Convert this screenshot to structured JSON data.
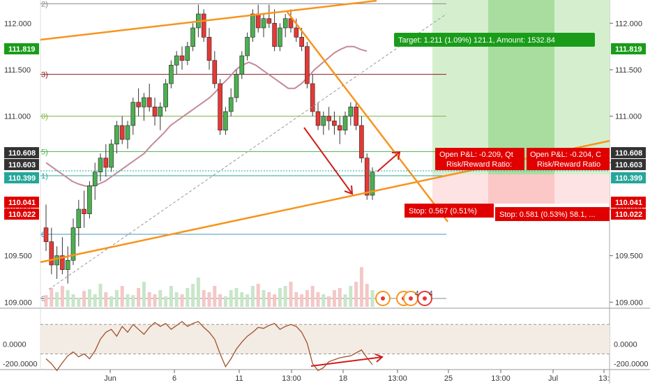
{
  "chart_data": [
    {
      "type": "candlestick",
      "title": "",
      "ylim": [
        108.95,
        112.25
      ],
      "right_axis_ticks": [
        "112.000",
        "111.500",
        "111.000",
        "110.500",
        "110.000",
        "109.500",
        "109.000"
      ],
      "left_axis_ticks": [
        "112.000",
        "111.500",
        "111.000",
        "110.500",
        "110.000",
        "109.500",
        "109.000"
      ],
      "right_axis_ticks_values": [
        112.0,
        111.5,
        111.0,
        110.5,
        110.0,
        109.5,
        109.0
      ],
      "x_ticks": [
        "Jun",
        "6",
        "11",
        "13:00",
        "18",
        "13:00",
        "25",
        "13:00",
        "Jul",
        "13:"
      ],
      "price_badges": [
        {
          "label": "111.819",
          "value": 111.819,
          "color": "#1a9c1a"
        },
        {
          "label": "110.608",
          "value": 110.608,
          "color": "#333333"
        },
        {
          "label": "110.603",
          "value": 110.603,
          "color": "#333333"
        },
        {
          "label": "110.399",
          "value": 110.399,
          "color": "#26a69a"
        },
        {
          "label": "110.041",
          "value": 110.041,
          "color": "#e00000"
        },
        {
          "label": "110.022",
          "value": 110.022,
          "color": "#e00000"
        }
      ],
      "fib_levels": [
        {
          "label": "2)",
          "value": 112.21,
          "color": "#888888"
        },
        {
          "label": "3)",
          "value": 111.45,
          "color": "#8b1a1a"
        },
        {
          "label": "0)",
          "value": 111.0,
          "color": "#7cb342"
        },
        {
          "label": "5)",
          "value": 110.62,
          "color": "#4caf50"
        },
        {
          "label": "1)",
          "value": 110.36,
          "color": "#26a69a"
        },
        {
          "label": "8)",
          "value": 109.73,
          "color": "#4a90b8"
        },
        {
          "label": "9)",
          "value": 109.04,
          "color": "#888888"
        }
      ],
      "candles": [
        [
          109.8,
          110.05,
          109.55,
          109.65
        ],
        [
          109.65,
          109.8,
          109.3,
          109.4
        ],
        [
          109.4,
          109.6,
          109.25,
          109.5
        ],
        [
          109.5,
          109.7,
          109.3,
          109.35
        ],
        [
          109.35,
          109.6,
          109.2,
          109.45
        ],
        [
          109.45,
          109.9,
          109.4,
          109.8
        ],
        [
          109.8,
          110.1,
          109.6,
          110.0
        ],
        [
          110.0,
          110.2,
          109.8,
          109.95
        ],
        [
          109.95,
          110.3,
          109.9,
          110.25
        ],
        [
          110.25,
          110.5,
          110.1,
          110.4
        ],
        [
          110.4,
          110.6,
          110.3,
          110.55
        ],
        [
          110.55,
          110.7,
          110.35,
          110.45
        ],
        [
          110.45,
          110.75,
          110.4,
          110.7
        ],
        [
          110.7,
          110.95,
          110.6,
          110.9
        ],
        [
          110.9,
          111.0,
          110.7,
          110.75
        ],
        [
          110.75,
          110.95,
          110.65,
          110.9
        ],
        [
          110.9,
          111.2,
          110.8,
          111.15
        ],
        [
          111.15,
          111.3,
          111.0,
          111.1
        ],
        [
          111.1,
          111.25,
          110.95,
          111.2
        ],
        [
          111.2,
          111.35,
          111.05,
          111.1
        ],
        [
          111.1,
          111.2,
          110.9,
          111.0
        ],
        [
          111.0,
          111.15,
          110.85,
          111.1
        ],
        [
          111.1,
          111.4,
          111.05,
          111.35
        ],
        [
          111.35,
          111.6,
          111.3,
          111.55
        ],
        [
          111.55,
          111.7,
          111.45,
          111.65
        ],
        [
          111.65,
          111.75,
          111.5,
          111.6
        ],
        [
          111.6,
          111.8,
          111.55,
          111.75
        ],
        [
          111.75,
          112.0,
          111.7,
          111.95
        ],
        [
          111.95,
          112.2,
          111.85,
          112.1
        ],
        [
          112.1,
          112.15,
          111.8,
          111.85
        ],
        [
          111.85,
          111.95,
          111.5,
          111.6
        ],
        [
          111.6,
          111.7,
          111.3,
          111.35
        ],
        [
          111.35,
          111.4,
          110.8,
          110.85
        ],
        [
          110.85,
          111.1,
          110.8,
          111.05
        ],
        [
          111.05,
          111.3,
          111.0,
          111.2
        ],
        [
          111.2,
          111.5,
          111.15,
          111.45
        ],
        [
          111.45,
          111.7,
          111.4,
          111.65
        ],
        [
          111.65,
          111.9,
          111.6,
          111.85
        ],
        [
          111.85,
          112.15,
          111.8,
          112.1
        ],
        [
          112.1,
          112.2,
          111.9,
          111.95
        ],
        [
          111.95,
          112.1,
          111.85,
          112.05
        ],
        [
          112.05,
          112.2,
          111.95,
          112.0
        ],
        [
          112.0,
          112.15,
          111.7,
          111.75
        ],
        [
          111.75,
          112.0,
          111.7,
          111.95
        ],
        [
          111.95,
          112.1,
          111.85,
          112.05
        ],
        [
          112.05,
          112.15,
          111.9,
          111.95
        ],
        [
          111.95,
          112.05,
          111.8,
          111.85
        ],
        [
          111.85,
          111.95,
          111.7,
          111.75
        ],
        [
          111.75,
          111.8,
          111.3,
          111.35
        ],
        [
          111.35,
          111.45,
          111.0,
          111.05
        ],
        [
          111.05,
          111.15,
          110.85,
          110.9
        ],
        [
          110.9,
          111.05,
          110.8,
          111.0
        ],
        [
          111.0,
          111.1,
          110.85,
          110.95
        ],
        [
          110.95,
          111.05,
          110.8,
          110.9
        ],
        [
          110.9,
          111.0,
          110.7,
          110.85
        ],
        [
          110.85,
          111.05,
          110.8,
          111.0
        ],
        [
          111.0,
          111.15,
          110.9,
          111.1
        ],
        [
          111.1,
          111.15,
          110.85,
          110.9
        ],
        [
          110.9,
          111.0,
          110.5,
          110.55
        ],
        [
          110.55,
          110.6,
          110.1,
          110.15
        ],
        [
          110.15,
          110.45,
          110.1,
          110.4
        ]
      ],
      "moving_average": [
        110.5,
        110.45,
        110.4,
        110.35,
        110.3,
        110.27,
        110.25,
        110.25,
        110.27,
        110.3,
        110.35,
        110.4,
        110.45,
        110.5,
        110.55,
        110.6,
        110.68,
        110.75,
        110.82,
        110.9,
        110.95,
        111.0,
        111.05,
        111.1,
        111.15,
        111.2,
        111.27,
        111.35,
        111.42,
        111.5,
        111.55,
        111.58,
        111.55,
        111.5,
        111.45,
        111.4,
        111.35,
        111.3,
        111.3,
        111.35,
        111.42,
        111.5,
        111.56,
        111.62,
        111.68,
        111.72,
        111.75,
        111.75,
        111.72,
        111.7
      ],
      "volume": [
        0.28,
        0.45,
        0.35,
        0.5,
        0.4,
        0.3,
        0.22,
        0.38,
        0.42,
        0.3,
        0.55,
        0.35,
        0.25,
        0.4,
        0.5,
        0.3,
        0.28,
        0.45,
        0.6,
        0.35,
        0.3,
        0.4,
        0.25,
        0.5,
        0.35,
        0.3,
        0.45,
        0.55,
        0.7,
        0.4,
        0.35,
        0.5,
        0.3,
        0.25,
        0.4,
        0.45,
        0.35,
        0.3,
        0.5,
        0.55,
        0.4,
        0.35,
        0.3,
        0.45,
        0.5,
        0.6,
        0.35,
        0.3,
        0.4,
        0.5,
        0.35,
        0.3,
        0.25,
        0.4,
        0.45,
        0.3,
        0.5,
        0.6,
        0.95,
        0.55,
        0.4
      ],
      "annotations": {
        "target": "Target: 1.211 (1.09%) 121.1, Amount: 1532.84",
        "open_pl_1": "Open P&L: -0.209, Qt",
        "risk_reward_1": "Risk/Reward Ratio:",
        "open_pl_2": "Open P&L: -0.204, C",
        "risk_reward_2": "Risk/Reward Ratio",
        "stop_1": "Stop: 0.567 (0.51%)",
        "stop_2": "Stop: 0.581 (0.53%) 58.1, ..."
      },
      "event_markers": [
        "4",
        "4"
      ]
    },
    {
      "type": "line",
      "title": "",
      "ylim": [
        -260,
        330
      ],
      "y_ticks": [
        "0.0000",
        "-200.0000"
      ],
      "y_ticks_values": [
        0,
        -200
      ],
      "reference_levels": [
        200,
        -100
      ],
      "values": [
        -150,
        -200,
        -270,
        -190,
        -120,
        -80,
        -130,
        -100,
        -150,
        -70,
        50,
        120,
        150,
        80,
        180,
        120,
        200,
        150,
        100,
        170,
        220,
        180,
        210,
        150,
        190,
        230,
        180,
        210,
        230,
        170,
        120,
        50,
        -100,
        -230,
        -150,
        -50,
        20,
        80,
        120,
        170,
        160,
        190,
        210,
        150,
        180,
        200,
        180,
        120,
        10,
        -200,
        -270,
        -240,
        -180,
        -160,
        -140,
        -130,
        -120,
        -90,
        -60,
        -140,
        -210
      ]
    }
  ]
}
